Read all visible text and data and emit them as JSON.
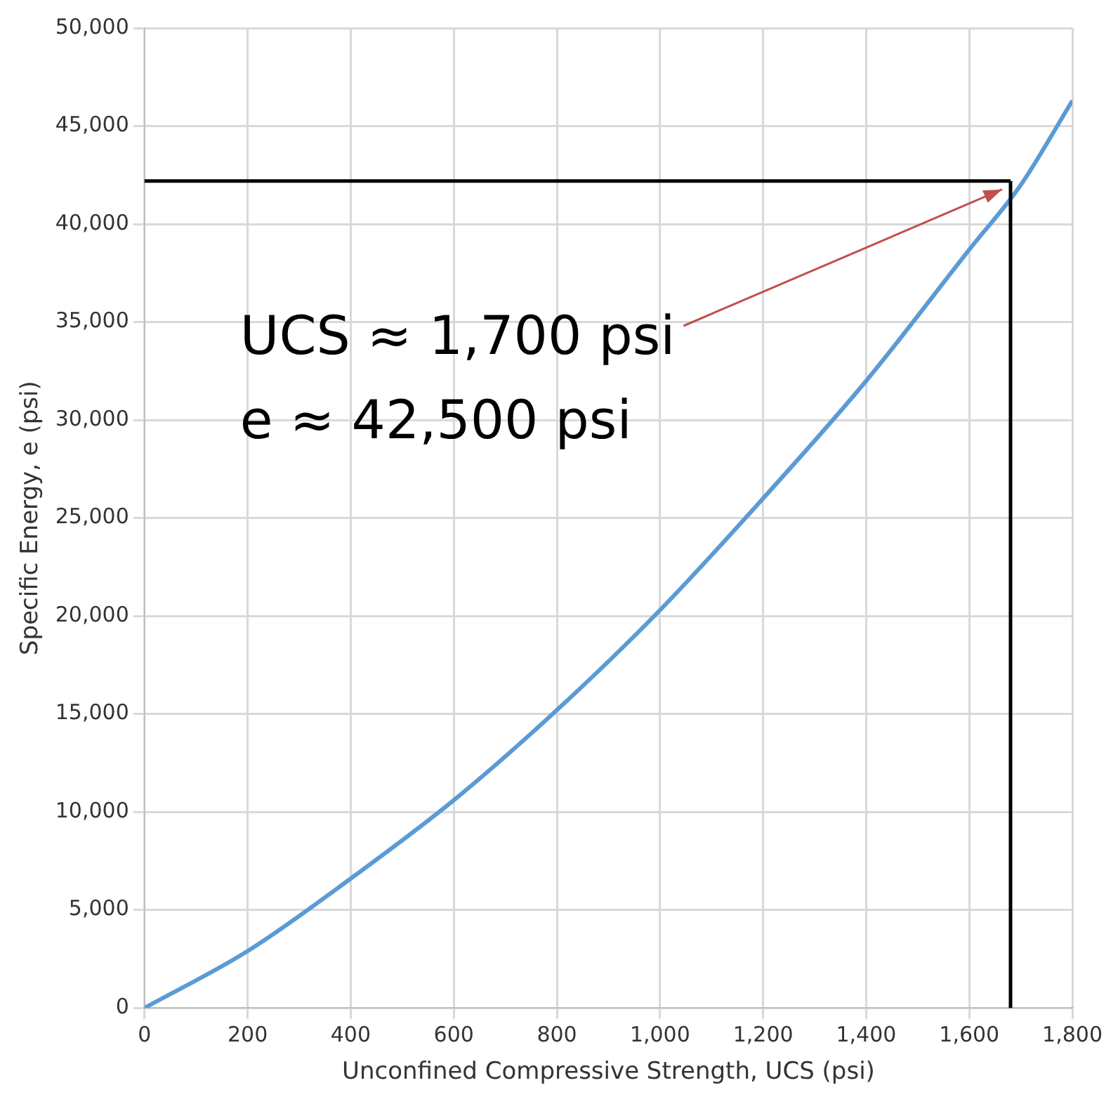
{
  "chart_data": {
    "type": "line",
    "xlabel": "Unconfined Compressive Strength, UCS (psi)",
    "ylabel": "Specific Energy, e (psi)",
    "x": [
      0,
      200,
      400,
      600,
      800,
      1000,
      1200,
      1400,
      1600,
      1700,
      1800
    ],
    "series": [
      {
        "color": "#5b9bd5",
        "values": [
          0,
          2900,
          6600,
          10600,
          15200,
          20300,
          26000,
          32000,
          38700,
          42000,
          46300
        ]
      }
    ],
    "xlim": [
      0,
      1800
    ],
    "xticks": [
      0,
      {
        "value": 200,
        "label": "200"
      },
      {
        "value": 400,
        "label": "400"
      },
      {
        "value": 600,
        "label": "600"
      },
      {
        "value": 800,
        "label": "800"
      },
      {
        "value": 1000,
        "label": "1,000"
      },
      {
        "value": 1200,
        "label": "1,200"
      },
      {
        "value": 1400,
        "label": "1,400"
      },
      {
        "value": 1600,
        "label": "1,600"
      },
      {
        "value": 1800,
        "label": "1,800"
      }
    ],
    "ylim": [
      0,
      50000
    ],
    "yticks": [
      0,
      {
        "value": 5000,
        "label": "5,000"
      },
      {
        "value": 10000,
        "label": "10,000"
      },
      {
        "value": 15000,
        "label": "15,000"
      },
      {
        "value": 20000,
        "label": "20,000"
      },
      {
        "value": 25000,
        "label": "25,000"
      },
      {
        "value": 30000,
        "label": "30,000"
      },
      {
        "value": 35000,
        "label": "35,000"
      },
      {
        "value": 40000,
        "label": "40,000"
      },
      {
        "value": 45000,
        "label": "45,000"
      },
      {
        "value": 50000,
        "label": "50,000"
      }
    ],
    "ref_lines": [
      {
        "axis": "x",
        "value": 1680,
        "color": "#000000"
      },
      {
        "axis": "y",
        "value": 42200,
        "color": "#000000"
      }
    ],
    "annotations": [
      "UCS ≈ 1,700 psi",
      "e ≈ 42,500 psi"
    ],
    "grid": true,
    "legend": false,
    "marker": "none",
    "line_style": "solid"
  }
}
